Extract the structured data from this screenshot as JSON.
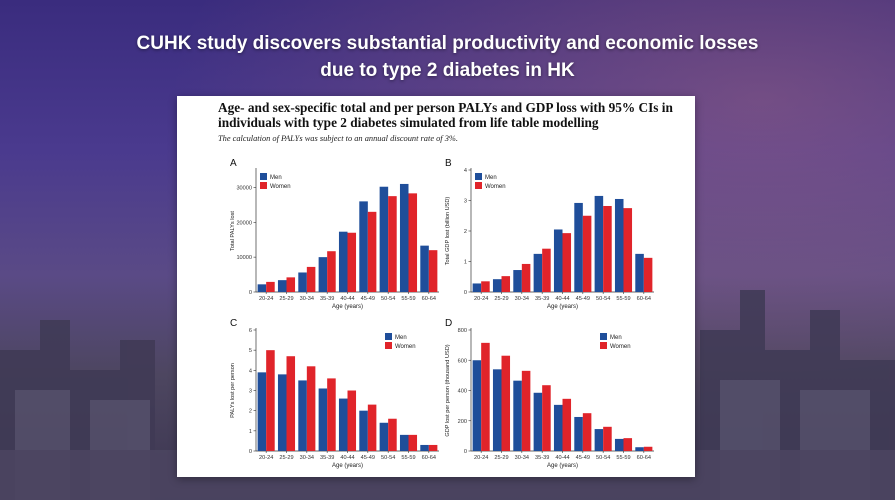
{
  "headline": {
    "line1": "CUHK study discovers substantial productivity and economic losses",
    "line2": "due to type 2 diabetes in HK"
  },
  "figure": {
    "title": "Age- and sex-specific total and per person PALYs and GDP loss with 95% CIs in individuals with type 2 diabetes simulated from life table modelling",
    "note": "The calculation of PALYs was subject to an annual discount rate of 3%."
  },
  "colors": {
    "men": "#1f4e9a",
    "women": "#e0242a",
    "background_top": "#3a2c7e"
  },
  "chart_data": [
    {
      "panel": "A",
      "type": "bar",
      "categories": [
        "20-24",
        "25-29",
        "30-34",
        "35-39",
        "40-44",
        "45-49",
        "50-54",
        "55-59",
        "60-64"
      ],
      "series": [
        {
          "name": "Men",
          "values": [
            2200,
            3400,
            5600,
            10000,
            17300,
            26000,
            30200,
            31000,
            13300
          ]
        },
        {
          "name": "Women",
          "values": [
            2900,
            4200,
            7200,
            11700,
            17000,
            23000,
            27500,
            28300,
            12000
          ]
        }
      ],
      "xlabel": "Age (years)",
      "ylabel": "Total PALYs lost",
      "ylim": [
        0,
        35000
      ],
      "yticks": [
        0,
        10000,
        20000,
        30000
      ],
      "ytick_labels": [
        "0",
        "10000",
        "20000",
        "30000"
      ],
      "legend": "top-left"
    },
    {
      "panel": "B",
      "type": "bar",
      "categories": [
        "20-24",
        "25-29",
        "30-34",
        "35-39",
        "40-44",
        "45-49",
        "50-54",
        "55-59",
        "60-64"
      ],
      "series": [
        {
          "name": "Men",
          "values": [
            0.28,
            0.42,
            0.72,
            1.25,
            2.05,
            2.92,
            3.15,
            3.05,
            1.25
          ]
        },
        {
          "name": "Women",
          "values": [
            0.35,
            0.52,
            0.92,
            1.42,
            1.93,
            2.5,
            2.82,
            2.75,
            1.12
          ]
        }
      ],
      "xlabel": "Age (years)",
      "ylabel": "Total GDP lost (billion USD)",
      "ylim": [
        0,
        4
      ],
      "yticks": [
        0,
        1,
        2,
        3,
        4
      ],
      "ytick_labels": [
        "0",
        "1",
        "2",
        "3",
        "4"
      ],
      "legend": "top-left"
    },
    {
      "panel": "C",
      "type": "bar",
      "categories": [
        "20-24",
        "25-29",
        "30-34",
        "35-39",
        "40-44",
        "45-49",
        "50-54",
        "55-59",
        "60-64"
      ],
      "series": [
        {
          "name": "Men",
          "values": [
            3.9,
            3.8,
            3.5,
            3.1,
            2.6,
            2.0,
            1.4,
            0.8,
            0.3
          ]
        },
        {
          "name": "Women",
          "values": [
            5.0,
            4.7,
            4.2,
            3.6,
            3.0,
            2.3,
            1.6,
            0.8,
            0.3
          ]
        }
      ],
      "xlabel": "Age (years)",
      "ylabel": "PALYs lost per person",
      "ylim": [
        0,
        6
      ],
      "yticks": [
        0,
        1,
        2,
        3,
        4,
        5,
        6
      ],
      "ytick_labels": [
        "0",
        "1",
        "2",
        "3",
        "4",
        "5",
        "6"
      ],
      "legend": "top-right"
    },
    {
      "panel": "D",
      "type": "bar",
      "categories": [
        "20-24",
        "25-29",
        "30-34",
        "35-39",
        "40-44",
        "45-49",
        "50-54",
        "55-59",
        "60-64"
      ],
      "series": [
        {
          "name": "Men",
          "values": [
            600,
            540,
            465,
            385,
            305,
            225,
            145,
            80,
            25
          ]
        },
        {
          "name": "Women",
          "values": [
            715,
            630,
            530,
            435,
            345,
            250,
            160,
            85,
            28
          ]
        }
      ],
      "xlabel": "Age (years)",
      "ylabel": "GDP lost per person (thousand USD)",
      "ylim": [
        0,
        800
      ],
      "yticks": [
        0,
        200,
        400,
        600,
        800
      ],
      "ytick_labels": [
        "0",
        "200",
        "400",
        "600",
        "800"
      ],
      "legend": "top-right"
    }
  ]
}
